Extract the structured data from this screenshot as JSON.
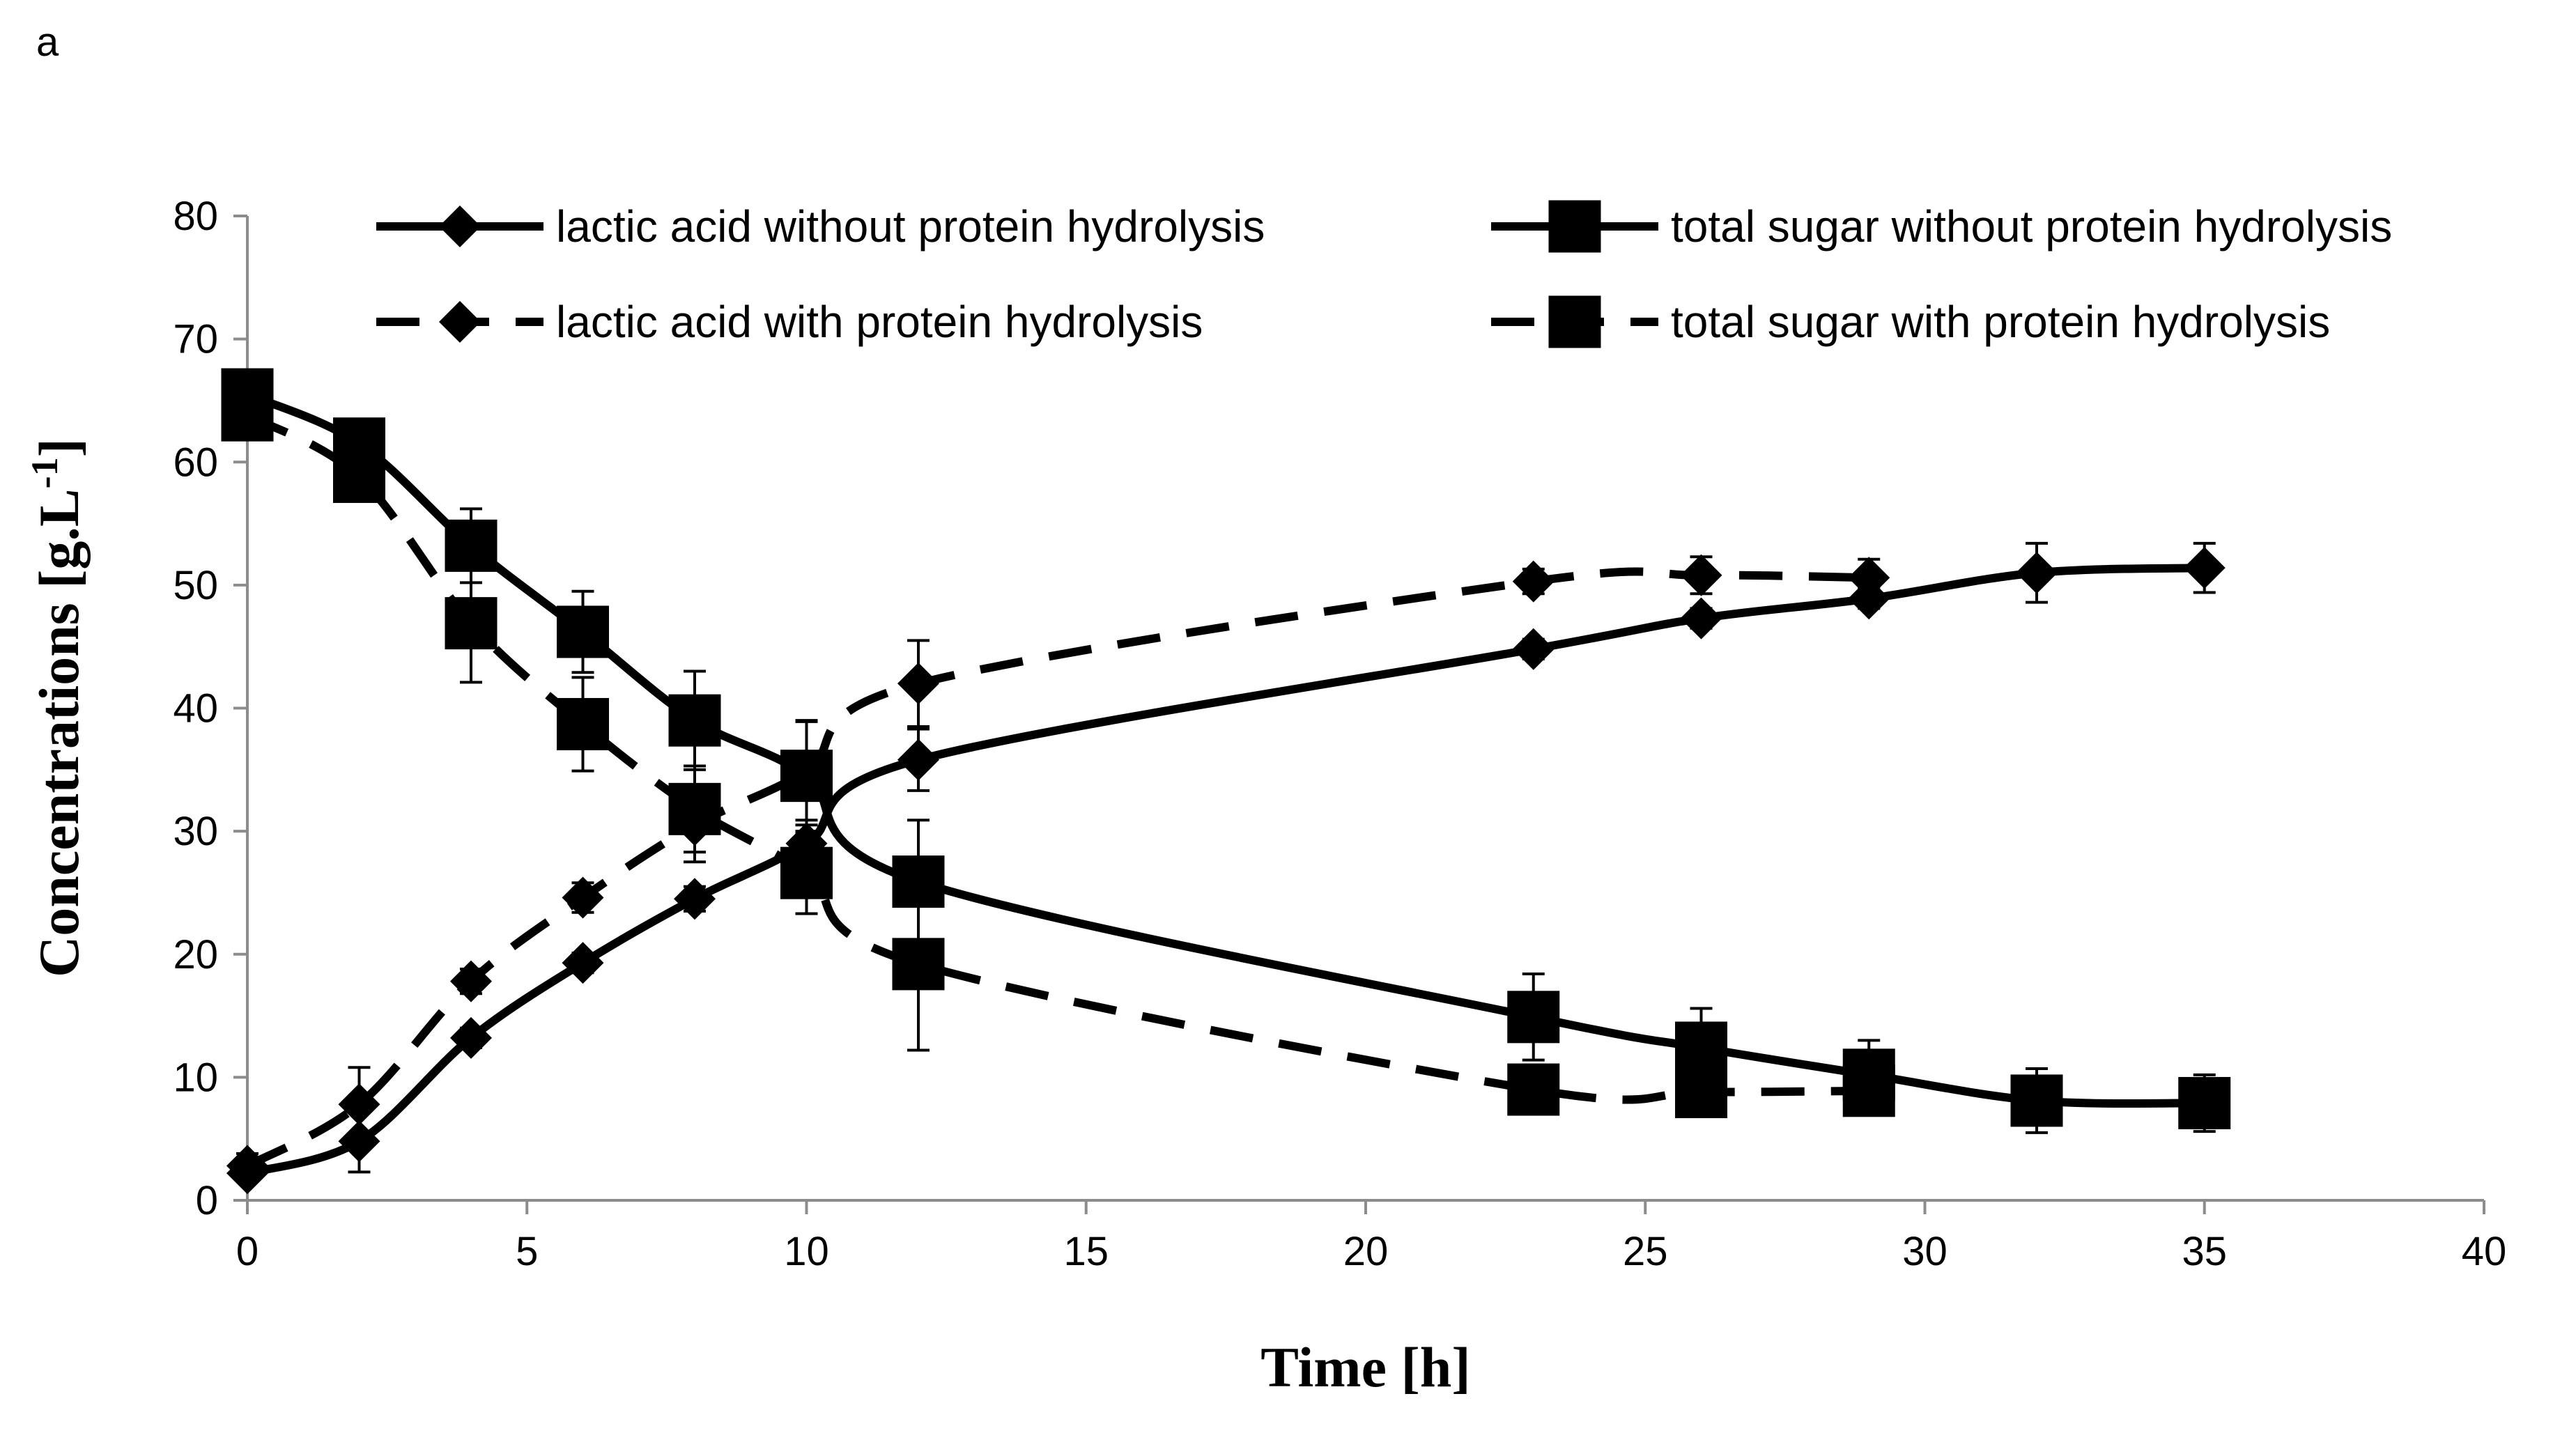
{
  "panel_label": "a",
  "chart_data": {
    "type": "line",
    "title": "",
    "xlabel": "Time [h]",
    "ylabel": "Concentrations [g.L-1]",
    "ylabel_main": "Concentrations [g.L",
    "ylabel_sup": "-1",
    "ylabel_end": "]",
    "xlim": [
      0,
      40
    ],
    "ylim": [
      0,
      80
    ],
    "xticks": [
      0,
      5,
      10,
      15,
      20,
      25,
      30,
      35,
      40
    ],
    "yticks": [
      0,
      10,
      20,
      30,
      40,
      50,
      60,
      70,
      80
    ],
    "grid": false,
    "legend_position": "top",
    "series": [
      {
        "name": "lactic acid without protein hydrolysis",
        "marker": "diamond",
        "line": "solid",
        "x": [
          0,
          2,
          4,
          6,
          8,
          10,
          12,
          23,
          26,
          29,
          32,
          35
        ],
        "y": [
          2.2,
          4.8,
          13.2,
          19.3,
          24.5,
          29.0,
          35.8,
          44.8,
          47.3,
          48.9,
          51.0,
          51.4
        ],
        "err": [
          0.5,
          2.5,
          0.8,
          0.8,
          1.0,
          1.5,
          2.5,
          0.8,
          0.8,
          0.8,
          2.4,
          2.0
        ]
      },
      {
        "name": "total sugar without protein hydrolysis",
        "marker": "square",
        "line": "solid",
        "x": [
          0,
          2,
          4,
          6,
          8,
          10,
          12,
          23,
          26,
          29,
          32,
          35
        ],
        "y": [
          65.5,
          61.5,
          53.2,
          46.2,
          39.0,
          34.5,
          25.9,
          14.9,
          12.4,
          10.2,
          8.1,
          7.9
        ],
        "err": [
          1.0,
          1.0,
          3.0,
          3.3,
          4.0,
          4.5,
          5.0,
          3.5,
          3.2,
          2.8,
          2.6,
          2.3
        ]
      },
      {
        "name": "lactic acid with protein hydrolysis",
        "marker": "diamond",
        "line": "dashed",
        "x": [
          0,
          2,
          4,
          6,
          8,
          10,
          12,
          23,
          26,
          29
        ],
        "y": [
          2.8,
          7.8,
          17.8,
          24.6,
          30.5,
          34.9,
          42.0,
          50.3,
          50.8,
          50.6
        ],
        "err": [
          1.0,
          3.0,
          1.0,
          1.2,
          3.0,
          4.0,
          3.5,
          1.0,
          1.5,
          1.5
        ]
      },
      {
        "name": "total sugar with protein hydrolysis",
        "marker": "square",
        "line": "dashed",
        "x": [
          0,
          2,
          4,
          6,
          8,
          10,
          12,
          23,
          26,
          29
        ],
        "y": [
          63.8,
          58.8,
          46.9,
          38.7,
          31.8,
          26.6,
          19.2,
          9.0,
          8.8,
          8.9
        ],
        "err": [
          1.0,
          1.0,
          4.8,
          3.8,
          3.5,
          3.3,
          7.0,
          1.0,
          1.0,
          1.0
        ]
      }
    ]
  }
}
